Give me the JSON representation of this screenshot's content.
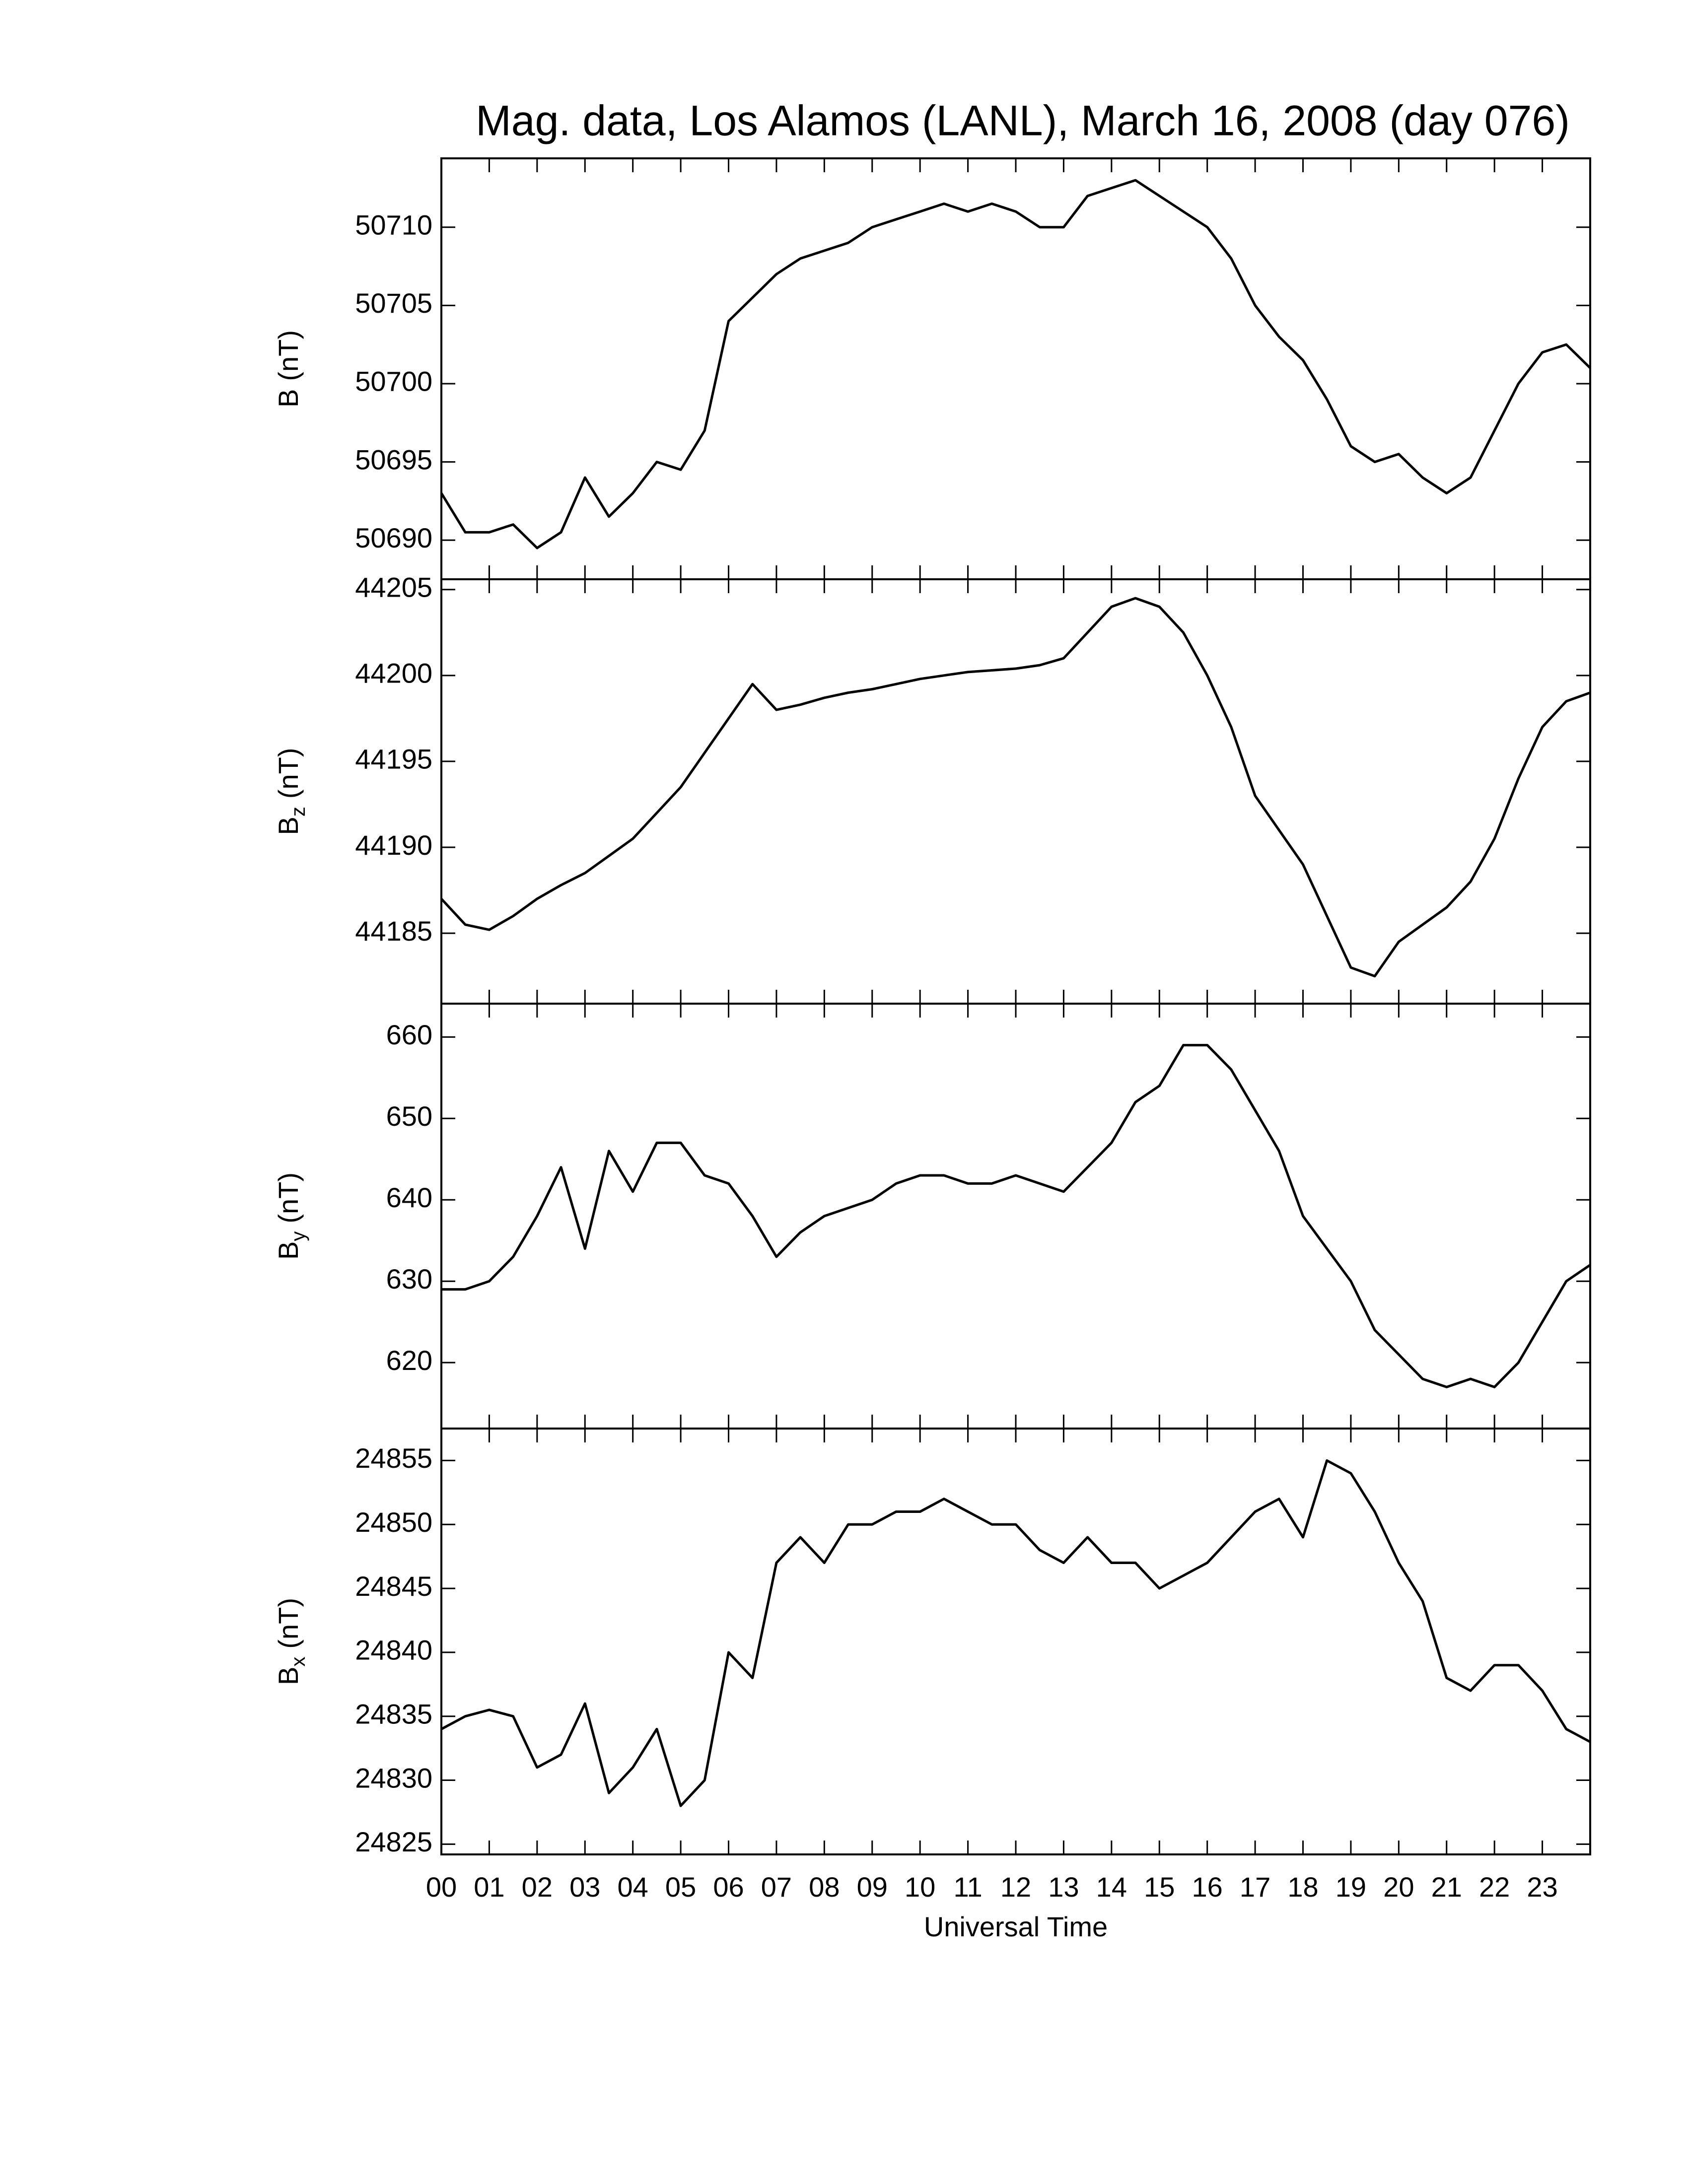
{
  "chart_data": [
    {
      "type": "line",
      "title": "Mag. data, Los Alamos (LANL), March 16, 2008 (day 076)",
      "ylabel": "B",
      "ylabel_unit": "(nT)",
      "color": "#000000",
      "x": [
        0,
        0.5,
        1,
        1.5,
        2,
        2.5,
        3,
        3.5,
        4,
        4.5,
        5,
        5.5,
        6,
        6.5,
        7,
        7.5,
        8,
        8.5,
        9,
        9.5,
        10,
        10.5,
        11,
        11.5,
        12,
        12.5,
        13,
        13.5,
        14,
        14.5,
        15,
        15.5,
        16,
        16.5,
        17,
        17.5,
        18,
        18.5,
        19,
        19.5,
        20,
        20.5,
        21,
        21.5,
        22,
        22.5,
        23,
        23.5,
        24
      ],
      "values": [
        50693,
        50690.5,
        50690.5,
        50691,
        50689.5,
        50690.5,
        50694,
        50691.5,
        50693,
        50695,
        50694.5,
        50697,
        50704,
        50705.5,
        50707,
        50708,
        50708.5,
        50709,
        50710,
        50710.5,
        50711,
        50711.5,
        50711,
        50711.5,
        50711,
        50710,
        50710,
        50712,
        50712.5,
        50713,
        50712,
        50711,
        50710,
        50708,
        50705,
        50703,
        50701.5,
        50699,
        50696,
        50695,
        50695.5,
        50694,
        50693,
        50694,
        50697,
        50700,
        50702,
        50702.5,
        50701
      ],
      "xlim": [
        0,
        24
      ],
      "ylim": [
        50687.5,
        50714.4
      ],
      "yticks": [
        50690,
        50695,
        50700,
        50705,
        50710
      ]
    },
    {
      "type": "line",
      "ylabel": "B",
      "ylabel_subscript": "z",
      "ylabel_unit": "(nT)",
      "color": "#000000",
      "x": [
        0,
        0.5,
        1,
        1.5,
        2,
        2.5,
        3,
        3.5,
        4,
        4.5,
        5,
        5.5,
        6,
        6.5,
        7,
        7.5,
        8,
        8.5,
        9,
        9.5,
        10,
        10.5,
        11,
        11.5,
        12,
        12.5,
        13,
        13.5,
        14,
        14.5,
        15,
        15.5,
        16,
        16.5,
        17,
        17.5,
        18,
        18.5,
        19,
        19.5,
        20,
        20.5,
        21,
        21.5,
        22,
        22.5,
        23,
        23.5,
        24
      ],
      "values": [
        44187,
        44185.5,
        44185.2,
        44186,
        44187,
        44187.8,
        44188.5,
        44189.5,
        44190.5,
        44192,
        44193.5,
        44195.5,
        44197.5,
        44199.5,
        44198,
        44198.3,
        44198.7,
        44199,
        44199.2,
        44199.5,
        44199.8,
        44200,
        44200.2,
        44200.3,
        44200.4,
        44200.6,
        44201,
        44202.5,
        44204,
        44204.5,
        44204,
        44202.5,
        44200,
        44197,
        44193,
        44191,
        44189,
        44186,
        44183,
        44182.5,
        44184.5,
        44185.5,
        44186.5,
        44188,
        44190.5,
        44194,
        44197,
        44198.5,
        44199
      ],
      "xlim": [
        0,
        24
      ],
      "ylim": [
        44180.9,
        44205.6
      ],
      "yticks": [
        44185,
        44190,
        44195,
        44200,
        44205
      ]
    },
    {
      "type": "line",
      "ylabel": "B",
      "ylabel_subscript": "y",
      "ylabel_unit": "(nT)",
      "color": "#000000",
      "x": [
        0,
        0.5,
        1,
        1.5,
        2,
        2.5,
        3,
        3.5,
        4,
        4.5,
        5,
        5.5,
        6,
        6.5,
        7,
        7.5,
        8,
        8.5,
        9,
        9.5,
        10,
        10.5,
        11,
        11.5,
        12,
        12.5,
        13,
        13.5,
        14,
        14.5,
        15,
        15.5,
        16,
        16.5,
        17,
        17.5,
        18,
        18.5,
        19,
        19.5,
        20,
        20.5,
        21,
        21.5,
        22,
        22.5,
        23,
        23.5,
        24
      ],
      "values": [
        629,
        629,
        630,
        633,
        638,
        644,
        634,
        646,
        641,
        647,
        647,
        643,
        642,
        638,
        633,
        636,
        638,
        639,
        640,
        642,
        643,
        643,
        642,
        642,
        643,
        642,
        641,
        644,
        647,
        652,
        654,
        659,
        659,
        656,
        651,
        646,
        638,
        634,
        630,
        624,
        621,
        618,
        617,
        618,
        617,
        620,
        625,
        630,
        632
      ],
      "xlim": [
        0,
        24
      ],
      "ylim": [
        611.9,
        664.1
      ],
      "yticks": [
        620,
        630,
        640,
        650,
        660
      ]
    },
    {
      "type": "line",
      "ylabel": "B",
      "ylabel_subscript": "x",
      "ylabel_unit": "(nT)",
      "xlabel": "Universal Time",
      "color": "#000000",
      "x": [
        0,
        0.5,
        1,
        1.5,
        2,
        2.5,
        3,
        3.5,
        4,
        4.5,
        5,
        5.5,
        6,
        6.5,
        7,
        7.5,
        8,
        8.5,
        9,
        9.5,
        10,
        10.5,
        11,
        11.5,
        12,
        12.5,
        13,
        13.5,
        14,
        14.5,
        15,
        15.5,
        16,
        16.5,
        17,
        17.5,
        18,
        18.5,
        19,
        19.5,
        20,
        20.5,
        21,
        21.5,
        22,
        22.5,
        23,
        23.5,
        24
      ],
      "values": [
        24834,
        24835,
        24835.5,
        24835,
        24831,
        24832,
        24836,
        24829,
        24831,
        24834,
        24828,
        24830,
        24840,
        24838,
        24847,
        24849,
        24847,
        24850,
        24850,
        24851,
        24851,
        24852,
        24851,
        24850,
        24850,
        24848,
        24847,
        24849,
        24847,
        24847,
        24845,
        24846,
        24847,
        24849,
        24851,
        24852,
        24849,
        24855,
        24854,
        24851,
        24847,
        24844,
        24838,
        24837,
        24839,
        24839,
        24837,
        24834,
        24833
      ],
      "xlim": [
        0,
        24
      ],
      "ylim": [
        24824.2,
        24857.5
      ],
      "yticks": [
        24825,
        24830,
        24835,
        24840,
        24845,
        24850,
        24855
      ],
      "xticks": [
        {
          "value": 0,
          "label": "00"
        },
        {
          "value": 1,
          "label": "01"
        },
        {
          "value": 2,
          "label": "02"
        },
        {
          "value": 3,
          "label": "03"
        },
        {
          "value": 4,
          "label": "04"
        },
        {
          "value": 5,
          "label": "05"
        },
        {
          "value": 6,
          "label": "06"
        },
        {
          "value": 7,
          "label": "07"
        },
        {
          "value": 8,
          "label": "08"
        },
        {
          "value": 9,
          "label": "09"
        },
        {
          "value": 10,
          "label": "10"
        },
        {
          "value": 11,
          "label": "11"
        },
        {
          "value": 12,
          "label": "12"
        },
        {
          "value": 13,
          "label": "13"
        },
        {
          "value": 14,
          "label": "14"
        },
        {
          "value": 15,
          "label": "15"
        },
        {
          "value": 16,
          "label": "16"
        },
        {
          "value": 17,
          "label": "17"
        },
        {
          "value": 18,
          "label": "18"
        },
        {
          "value": 19,
          "label": "19"
        },
        {
          "value": 20,
          "label": "20"
        },
        {
          "value": 21,
          "label": "21"
        },
        {
          "value": 22,
          "label": "22"
        },
        {
          "value": 23,
          "label": "23"
        }
      ]
    }
  ]
}
